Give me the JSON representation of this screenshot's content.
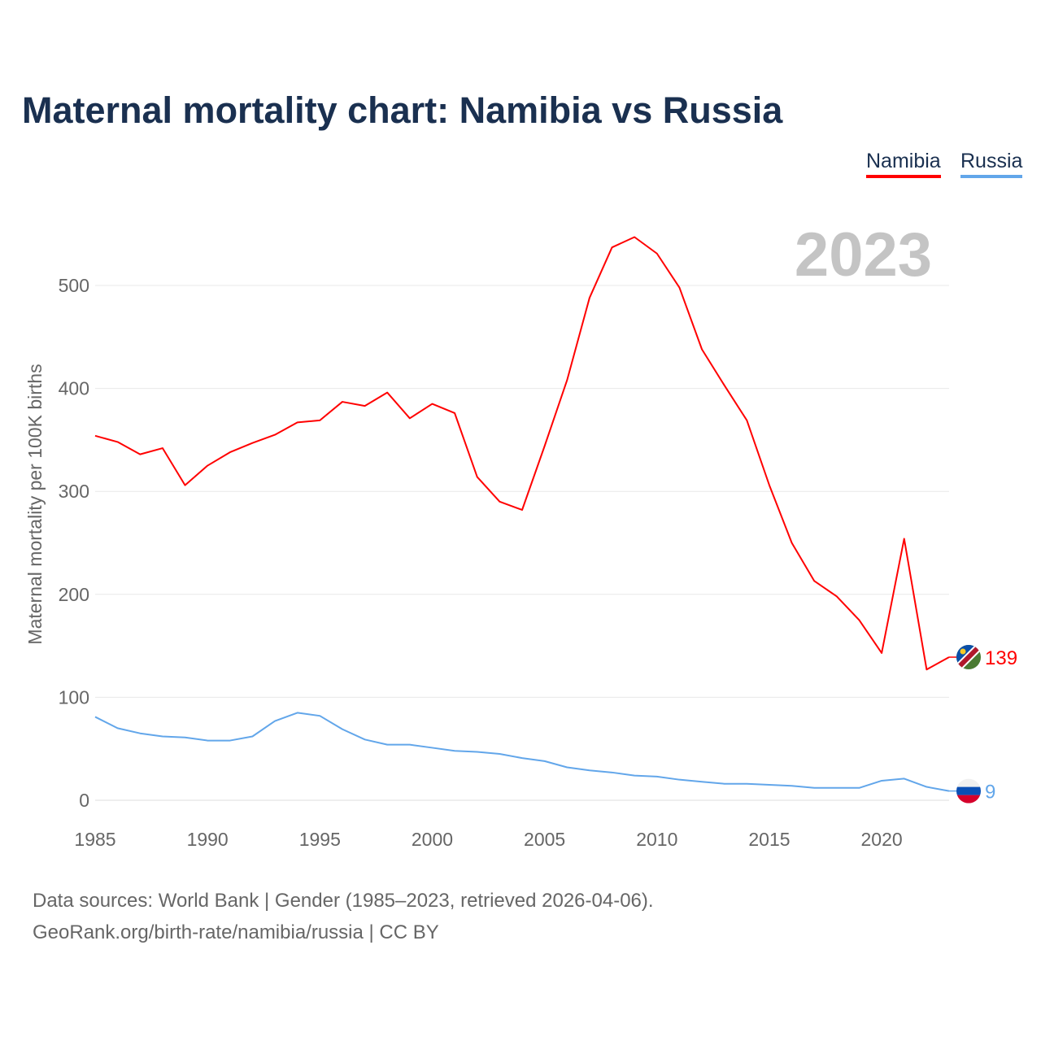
{
  "title": "Maternal mortality chart: Namibia vs Russia",
  "year_label": "2023",
  "source_line1": "Data sources: World Bank | Gender (1985–2023, retrieved 2026-04-06).",
  "source_line2": "GeoRank.org/birth-rate/namibia/russia | CC BY",
  "chart_data": {
    "type": "line",
    "title": "Maternal mortality chart: Namibia vs Russia",
    "xlabel": "",
    "ylabel": "Maternal mortality per 100K births",
    "xlim": [
      1985,
      2023
    ],
    "ylim": [
      0,
      560
    ],
    "xticks": [
      1985,
      1990,
      1995,
      2000,
      2005,
      2010,
      2015,
      2020
    ],
    "yticks": [
      0,
      100,
      200,
      300,
      400,
      500
    ],
    "grid": true,
    "legend": "top-right",
    "x": [
      1985,
      1986,
      1987,
      1988,
      1989,
      1990,
      1991,
      1992,
      1993,
      1994,
      1995,
      1996,
      1997,
      1998,
      1999,
      2000,
      2001,
      2002,
      2003,
      2004,
      2005,
      2006,
      2007,
      2008,
      2009,
      2010,
      2011,
      2012,
      2013,
      2014,
      2015,
      2016,
      2017,
      2018,
      2019,
      2020,
      2021,
      2022,
      2023
    ],
    "series": [
      {
        "name": "Namibia",
        "color": "#ff0000",
        "end_label": "139",
        "values": [
          354,
          348,
          336,
          342,
          306,
          325,
          338,
          347,
          355,
          367,
          369,
          387,
          383,
          396,
          371,
          385,
          376,
          314,
          290,
          282,
          344,
          408,
          488,
          537,
          547,
          531,
          498,
          438,
          403,
          369,
          306,
          250,
          213,
          198,
          175,
          143,
          254,
          127,
          139
        ]
      },
      {
        "name": "Russia",
        "color": "#62a6ea",
        "end_label": "9",
        "values": [
          81,
          70,
          65,
          62,
          61,
          58,
          58,
          62,
          77,
          85,
          82,
          69,
          59,
          54,
          54,
          51,
          48,
          47,
          45,
          41,
          38,
          32,
          29,
          27,
          24,
          23,
          20,
          18,
          16,
          16,
          15,
          14,
          12,
          12,
          12,
          19,
          21,
          13,
          9
        ]
      }
    ]
  }
}
